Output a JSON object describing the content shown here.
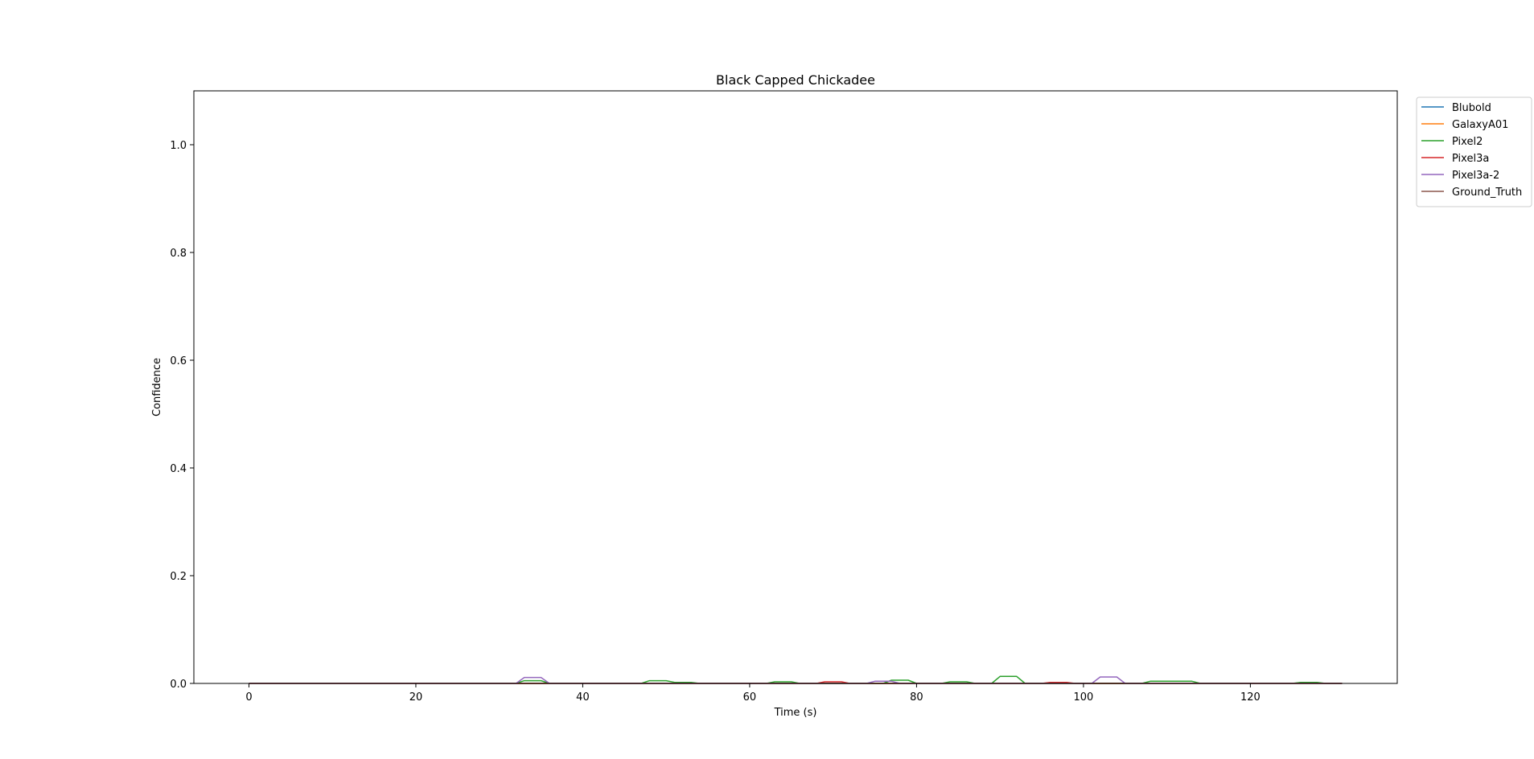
{
  "chart_data": {
    "type": "line",
    "title": "Black Capped Chickadee",
    "xlabel": "Time (s)",
    "ylabel": "Confidence",
    "xlim": [
      -6.6,
      137.6
    ],
    "ylim": [
      0,
      1.1
    ],
    "xticks": [
      0,
      20,
      40,
      60,
      80,
      100,
      120
    ],
    "yticks": [
      0.0,
      0.2,
      0.4,
      0.6,
      0.8,
      1.0
    ],
    "xtick_labels": [
      "0",
      "20",
      "40",
      "60",
      "80",
      "100",
      "120"
    ],
    "ytick_labels": [
      "0.0",
      "0.2",
      "0.4",
      "0.6",
      "0.8",
      "1.0"
    ],
    "grid": false,
    "legend_position": "outside-top-right",
    "series": [
      {
        "name": "Blubold",
        "color": "#1f77b4",
        "x": [
          0,
          131
        ],
        "y": [
          0,
          0
        ]
      },
      {
        "name": "GalaxyA01",
        "color": "#ff7f0e",
        "x": [
          0,
          131
        ],
        "y": [
          0,
          0
        ]
      },
      {
        "name": "Pixel2",
        "color": "#2ca02c",
        "x": [
          0,
          32,
          33,
          35,
          36,
          47,
          48,
          50,
          51,
          53,
          54,
          62,
          63,
          65,
          66,
          76,
          77,
          79,
          80,
          83,
          84,
          86,
          87,
          89,
          90,
          92,
          93,
          107,
          108,
          113,
          114,
          125,
          126,
          128,
          129,
          131
        ],
        "y": [
          0,
          0,
          0.005,
          0.005,
          0,
          0,
          0.005,
          0.005,
          0.002,
          0.002,
          0,
          0,
          0.003,
          0.003,
          0,
          0,
          0.006,
          0.006,
          0,
          0,
          0.003,
          0.003,
          0,
          0,
          0.013,
          0.013,
          0,
          0,
          0.004,
          0.004,
          0,
          0,
          0.002,
          0.002,
          0,
          0
        ]
      },
      {
        "name": "Pixel3a",
        "color": "#d62728",
        "x": [
          0,
          68,
          69,
          71,
          72,
          95,
          96,
          98,
          99,
          131
        ],
        "y": [
          0,
          0,
          0.003,
          0.003,
          0,
          0,
          0.002,
          0.002,
          0,
          0
        ]
      },
      {
        "name": "Pixel3a-2",
        "color": "#9467bd",
        "x": [
          0,
          32,
          33,
          35,
          36,
          74,
          75,
          77,
          78,
          101,
          102,
          104,
          105,
          131
        ],
        "y": [
          0,
          0,
          0.011,
          0.011,
          0,
          0,
          0.004,
          0.004,
          0,
          0,
          0.012,
          0.012,
          0,
          0
        ]
      },
      {
        "name": "Ground_Truth",
        "color": "#8c564b",
        "x": [
          0,
          131
        ],
        "y": [
          0,
          0
        ]
      }
    ]
  }
}
